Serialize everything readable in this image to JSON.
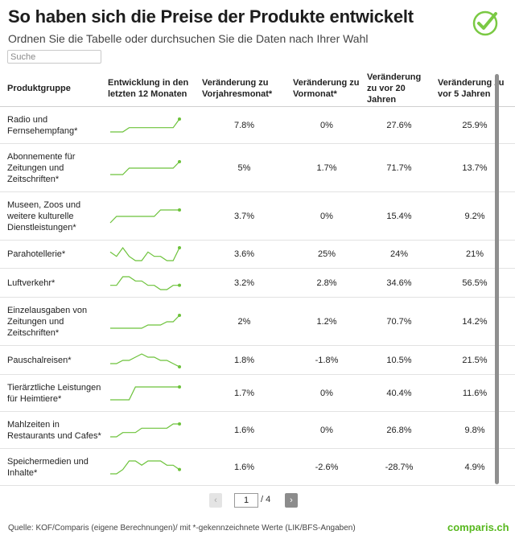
{
  "header": {
    "title": "So haben sich die Preise der Produkte entwickelt",
    "subtitle": "Ordnen Sie die Tabelle oder durchsuchen Sie die Daten nach Ihrer Wahl"
  },
  "search": {
    "placeholder": "Suche"
  },
  "colors": {
    "accent": "#6cc23a",
    "brand": "#58b81f"
  },
  "table": {
    "columns": [
      "Produktgruppe",
      "Entwicklung in den letzten 12 Monaten",
      "Veränderung zu Vorjahresmonat*",
      "Veränderung zu Vormonat*",
      "Veränderung zu vor 20 Jahren",
      "Veränderung zu vor 5 Jahren"
    ],
    "rows": [
      {
        "name": "Radio und Fernsehempfang*",
        "yoy": "7.8%",
        "mom": "0%",
        "y20": "27.6%",
        "y5": "25.9%",
        "trend": [
          1,
          1,
          1,
          2,
          2,
          2,
          2,
          2,
          2,
          2,
          2,
          4
        ]
      },
      {
        "name": "Abonnemente für Zeitungen und Zeitschriften*",
        "yoy": "5%",
        "mom": "1.7%",
        "y20": "71.7%",
        "y5": "13.7%",
        "trend": [
          1,
          1,
          1,
          2,
          2,
          2,
          2,
          2,
          2,
          2,
          2,
          3
        ]
      },
      {
        "name": "Museen, Zoos und weitere kulturelle Dienstleistungen*",
        "yoy": "3.7%",
        "mom": "0%",
        "y20": "15.4%",
        "y5": "9.2%",
        "trend": [
          1,
          2,
          2,
          2,
          2,
          2,
          2,
          2,
          3,
          3,
          3,
          3
        ]
      },
      {
        "name": "Parahotellerie*",
        "yoy": "3.6%",
        "mom": "25%",
        "y20": "24%",
        "y5": "21%",
        "trend": [
          3,
          2,
          4,
          2,
          1,
          1,
          3,
          2,
          2,
          1,
          1,
          4
        ]
      },
      {
        "name": "Luftverkehr*",
        "yoy": "3.2%",
        "mom": "2.8%",
        "y20": "34.6%",
        "y5": "56.5%",
        "trend": [
          2,
          2,
          4,
          4,
          3,
          3,
          2,
          2,
          1,
          1,
          2,
          2
        ]
      },
      {
        "name": "Einzelausgaben von Zeitungen und Zeitschriften*",
        "yoy": "2%",
        "mom": "1.2%",
        "y20": "70.7%",
        "y5": "14.2%",
        "trend": [
          1,
          1,
          1,
          1,
          1,
          1,
          2,
          2,
          2,
          3,
          3,
          5
        ]
      },
      {
        "name": "Pauschalreisen*",
        "yoy": "1.8%",
        "mom": "-1.8%",
        "y20": "10.5%",
        "y5": "21.5%",
        "trend": [
          2,
          2,
          3,
          3,
          4,
          5,
          4,
          4,
          3,
          3,
          2,
          1
        ]
      },
      {
        "name": "Tierärztliche Leistungen für Heimtiere*",
        "yoy": "1.7%",
        "mom": "0%",
        "y20": "40.4%",
        "y5": "11.6%",
        "trend": [
          1,
          1,
          1,
          1,
          4,
          4,
          4,
          4,
          4,
          4,
          4,
          4
        ]
      },
      {
        "name": "Mahlzeiten in Restaurants und Cafes*",
        "yoy": "1.6%",
        "mom": "0%",
        "y20": "26.8%",
        "y5": "9.8%",
        "trend": [
          1,
          1,
          2,
          2,
          2,
          3,
          3,
          3,
          3,
          3,
          4,
          4
        ]
      },
      {
        "name": "Speichermedien und Inhalte*",
        "yoy": "1.6%",
        "mom": "-2.6%",
        "y20": "-28.7%",
        "y5": "4.9%",
        "trend": [
          1,
          1,
          2,
          4,
          4,
          3,
          4,
          4,
          4,
          3,
          3,
          2
        ]
      }
    ]
  },
  "pagination": {
    "prev": "‹",
    "next": "›",
    "current": "1",
    "total": "/ 4"
  },
  "footer": {
    "source": "Quelle: KOF/Comparis (eigene Berechnungen)/ mit *-gekennzeichnete Werte (LIK/BFS-Angaben)",
    "brand": "comparis.ch"
  }
}
